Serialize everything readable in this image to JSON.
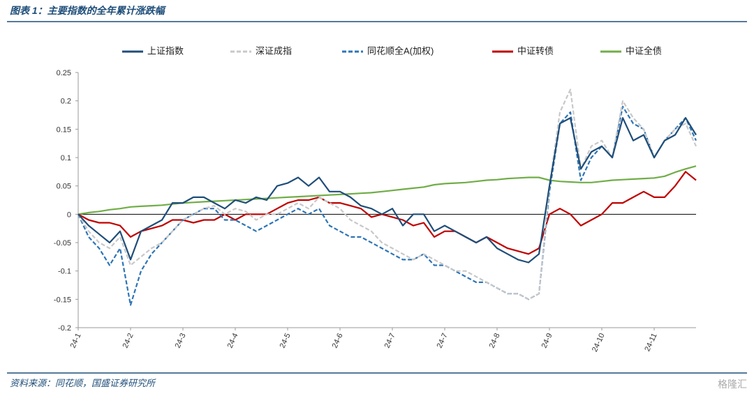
{
  "header": {
    "title": "图表 1：主要指数的全年累计涨跌幅"
  },
  "footer": {
    "source": "资料来源：同花顺，国盛证券研究所",
    "watermark": "格隆汇"
  },
  "chart_data": {
    "type": "line",
    "categories": [
      "24-1",
      null,
      null,
      null,
      null,
      "24-2",
      null,
      null,
      null,
      null,
      "24-3",
      null,
      null,
      null,
      null,
      "24-4",
      null,
      null,
      null,
      null,
      "24-5",
      null,
      null,
      null,
      null,
      "24-6",
      null,
      null,
      null,
      null,
      "24-7",
      null,
      null,
      null,
      null,
      "24-7",
      null,
      null,
      null,
      null,
      "24-8",
      null,
      null,
      null,
      null,
      "24-9",
      null,
      null,
      null,
      null,
      "24-10",
      null,
      null,
      null,
      null,
      "24-11",
      null,
      null,
      null,
      null
    ],
    "ylim": [
      -0.2,
      0.25
    ],
    "yticks": [
      -0.2,
      -0.15,
      -0.1,
      -0.05,
      0,
      0.05,
      0.1,
      0.15,
      0.2,
      0.25
    ],
    "legend": "top",
    "series": [
      {
        "name": "上证指数",
        "color": "#1f4e79",
        "dash": false,
        "values": [
          0,
          -0.02,
          -0.035,
          -0.05,
          -0.03,
          -0.08,
          -0.03,
          -0.02,
          -0.01,
          0.02,
          0.02,
          0.03,
          0.03,
          0.02,
          0.01,
          0.025,
          0.02,
          0.03,
          0.025,
          0.05,
          0.055,
          0.065,
          0.05,
          0.065,
          0.04,
          0.04,
          0.03,
          0.015,
          0.01,
          0,
          0.01,
          -0.02,
          0,
          0,
          -0.03,
          -0.02,
          -0.03,
          -0.04,
          -0.05,
          -0.04,
          -0.06,
          -0.07,
          -0.08,
          -0.085,
          -0.07,
          0.05,
          0.16,
          0.17,
          0.08,
          0.11,
          0.12,
          0.1,
          0.17,
          0.13,
          0.14,
          0.1,
          0.13,
          0.14,
          0.17,
          0.14
        ]
      },
      {
        "name": "深证成指",
        "color": "#c8c8c8",
        "dash": true,
        "values": [
          0,
          -0.03,
          -0.05,
          -0.06,
          -0.04,
          -0.09,
          -0.075,
          -0.06,
          -0.05,
          -0.03,
          -0.01,
          0,
          0.01,
          0.015,
          0,
          0.01,
          0.005,
          -0.01,
          0,
          0,
          0.01,
          0.02,
          0.01,
          0.03,
          0.02,
          0.01,
          -0.01,
          -0.02,
          -0.03,
          -0.05,
          -0.06,
          -0.07,
          -0.08,
          -0.07,
          -0.08,
          -0.09,
          -0.1,
          -0.1,
          -0.11,
          -0.12,
          -0.13,
          -0.14,
          -0.14,
          -0.15,
          -0.14,
          0.05,
          0.18,
          0.22,
          0.08,
          0.12,
          0.13,
          0.1,
          0.2,
          0.17,
          0.15,
          0.1,
          0.13,
          0.15,
          0.16,
          0.12
        ]
      },
      {
        "name": "同花顺全A(加权)",
        "color": "#2e75b6",
        "dash": true,
        "values": [
          0,
          -0.04,
          -0.06,
          -0.09,
          -0.06,
          -0.16,
          -0.1,
          -0.07,
          -0.05,
          -0.03,
          -0.01,
          0,
          0.01,
          0.01,
          -0.01,
          -0.01,
          -0.02,
          -0.03,
          -0.02,
          -0.01,
          0,
          0.01,
          0,
          0.01,
          -0.02,
          -0.03,
          -0.04,
          -0.04,
          -0.05,
          -0.06,
          -0.07,
          -0.08,
          -0.08,
          -0.07,
          -0.09,
          -0.09,
          -0.1,
          -0.11,
          -0.12,
          -0.12,
          -0.13,
          -0.14,
          -0.14,
          -0.15,
          -0.14,
          0.04,
          0.16,
          0.18,
          0.06,
          0.1,
          0.12,
          0.1,
          0.19,
          0.16,
          0.15,
          0.1,
          0.13,
          0.15,
          0.17,
          0.13
        ]
      },
      {
        "name": "中证转债",
        "color": "#c00000",
        "dash": false,
        "values": [
          0,
          -0.01,
          -0.015,
          -0.015,
          -0.02,
          -0.04,
          -0.03,
          -0.025,
          -0.02,
          -0.01,
          -0.01,
          -0.015,
          -0.01,
          -0.01,
          0,
          -0.01,
          0,
          0,
          0,
          0.01,
          0.02,
          0.025,
          0.025,
          0.03,
          0.02,
          0.02,
          0.015,
          0.01,
          -0.005,
          0,
          -0.005,
          -0.01,
          -0.02,
          -0.015,
          -0.04,
          -0.03,
          -0.03,
          -0.04,
          -0.05,
          -0.04,
          -0.05,
          -0.06,
          -0.065,
          -0.07,
          -0.06,
          0,
          0.01,
          0,
          -0.02,
          -0.01,
          0,
          0.02,
          0.02,
          0.03,
          0.04,
          0.03,
          0.03,
          0.05,
          0.075,
          0.06
        ]
      },
      {
        "name": "中证全债",
        "color": "#70ad47",
        "dash": false,
        "values": [
          0,
          0.003,
          0.005,
          0.008,
          0.01,
          0.013,
          0.014,
          0.015,
          0.016,
          0.018,
          0.02,
          0.021,
          0.022,
          0.023,
          0.024,
          0.025,
          0.026,
          0.027,
          0.028,
          0.029,
          0.03,
          0.031,
          0.032,
          0.033,
          0.034,
          0.035,
          0.036,
          0.037,
          0.038,
          0.04,
          0.042,
          0.044,
          0.046,
          0.048,
          0.052,
          0.054,
          0.055,
          0.056,
          0.058,
          0.06,
          0.061,
          0.063,
          0.064,
          0.065,
          0.065,
          0.06,
          0.058,
          0.057,
          0.056,
          0.056,
          0.058,
          0.06,
          0.061,
          0.062,
          0.063,
          0.064,
          0.067,
          0.074,
          0.08,
          0.085
        ]
      }
    ]
  }
}
